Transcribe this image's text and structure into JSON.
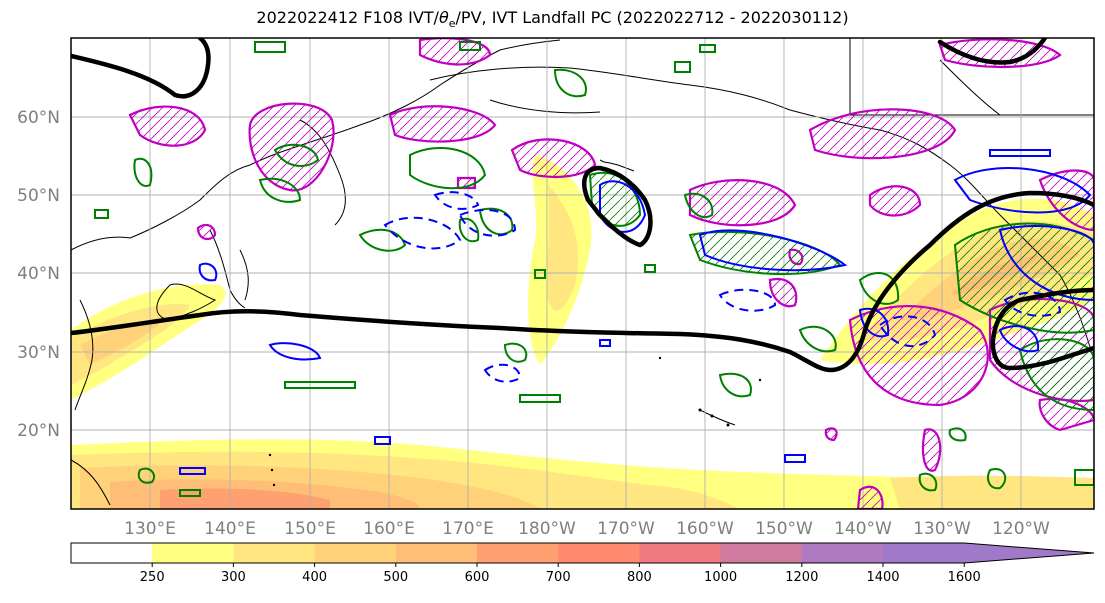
{
  "title": {
    "prefix": "2022022412 F108 IVT/",
    "theta_symbol": "θ",
    "theta_sub": "e",
    "suffix": "/PV, IVT Landfall PC (2022022712 - 2022030112)"
  },
  "map": {
    "lat_labels": [
      "60°N",
      "50°N",
      "40°N",
      "30°N",
      "20°N"
    ],
    "lon_labels": [
      "130°E",
      "140°E",
      "150°E",
      "160°E",
      "170°E",
      "180°W",
      "170°W",
      "160°W",
      "150°W",
      "140°W",
      "130°W",
      "120°W"
    ],
    "ivt_fill_colors": [
      "#ffff80",
      "#ffe680",
      "#ffd27a",
      "#ffbe78",
      "#ffa070",
      "#ff8a70",
      "#f07a80",
      "#d07aa0",
      "#b07ac0",
      "#a07ac8"
    ],
    "contour_colors": {
      "positive_pv": "#c000c0",
      "theta_e": "#008000",
      "ivt_negative": "#0000ff",
      "landfall_pc": "#000000"
    }
  },
  "colorbar": {
    "levels": [
      "250",
      "300",
      "400",
      "500",
      "600",
      "700",
      "800",
      "1000",
      "1200",
      "1400",
      "1600"
    ],
    "colors": [
      "#ffffff",
      "#ffff80",
      "#ffe680",
      "#ffd27a",
      "#ffbe78",
      "#ffa070",
      "#ff8a70",
      "#f07a80",
      "#d07aa0",
      "#b07ac0",
      "#a07ac8",
      "#a07ac8"
    ]
  }
}
